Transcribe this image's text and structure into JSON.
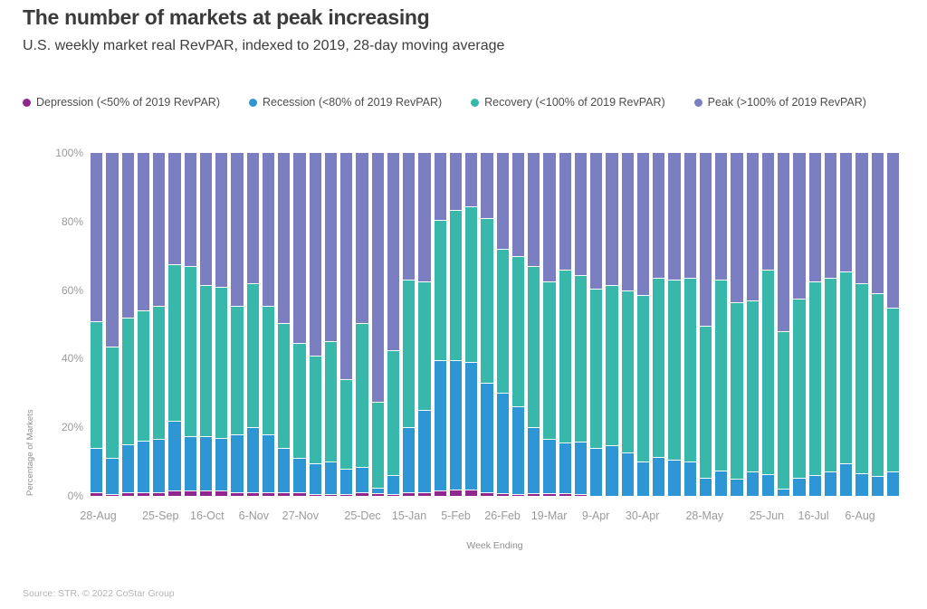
{
  "title": "The number of markets at peak increasing",
  "subtitle": "U.S. weekly market real RevPAR, indexed to 2019, 28-day moving average",
  "footer": "Source: STR. © 2022 CoStar Group",
  "colors": {
    "depression": "#90278e",
    "recession": "#2e96d4",
    "recovery": "#38b8ab",
    "peak": "#7b7ec1",
    "title_text": "#3b3b3b",
    "axis_text": "#9b9b9b"
  },
  "legend": {
    "items": [
      {
        "label": "Depression (<50% of 2019 RevPAR)",
        "color": "depression"
      },
      {
        "label": "Recession (<80% of 2019 RevPAR)",
        "color": "recession"
      },
      {
        "label": "Recovery (<100% of 2019 RevPAR)",
        "color": "recovery"
      },
      {
        "label": "Peak (>100% of 2019 RevPAR)",
        "color": "peak"
      }
    ]
  },
  "chart_data": {
    "type": "bar",
    "stacked": true,
    "title": "The number of markets at peak increasing",
    "subtitle": "U.S. weekly market real RevPAR, indexed to 2019, 28-day moving average",
    "xlabel": "Week Ending",
    "ylabel": "Percentage of Markets",
    "ylim": [
      0,
      100
    ],
    "grid": false,
    "legend_position": "top",
    "y_ticks": [
      {
        "value": 0,
        "label": "0%"
      },
      {
        "value": 20,
        "label": "20%"
      },
      {
        "value": 40,
        "label": "40%"
      },
      {
        "value": 60,
        "label": "60%"
      },
      {
        "value": 80,
        "label": "80%"
      },
      {
        "value": 100,
        "label": "100%"
      }
    ],
    "x_tick_marks": [
      {
        "index": 0,
        "label": "28-Aug"
      },
      {
        "index": 4,
        "label": "25-Sep"
      },
      {
        "index": 7,
        "label": "16-Oct"
      },
      {
        "index": 10,
        "label": "6-Nov"
      },
      {
        "index": 13,
        "label": "27-Nov"
      },
      {
        "index": 17,
        "label": "25-Dec"
      },
      {
        "index": 20,
        "label": "15-Jan"
      },
      {
        "index": 23,
        "label": "5-Feb"
      },
      {
        "index": 26,
        "label": "26-Feb"
      },
      {
        "index": 29,
        "label": "19-Mar"
      },
      {
        "index": 32,
        "label": "9-Apr"
      },
      {
        "index": 35,
        "label": "30-Apr"
      },
      {
        "index": 39,
        "label": "28-May"
      },
      {
        "index": 43,
        "label": "25-Jun"
      },
      {
        "index": 46,
        "label": "16-Jul"
      },
      {
        "index": 49,
        "label": "6-Aug"
      }
    ],
    "categories": [
      "28-Aug",
      "4-Sep",
      "11-Sep",
      "18-Sep",
      "25-Sep",
      "2-Oct",
      "9-Oct",
      "16-Oct",
      "23-Oct",
      "30-Oct",
      "6-Nov",
      "13-Nov",
      "20-Nov",
      "27-Nov",
      "4-Dec",
      "11-Dec",
      "18-Dec",
      "25-Dec",
      "1-Jan",
      "8-Jan",
      "15-Jan",
      "22-Jan",
      "29-Jan",
      "5-Feb",
      "12-Feb",
      "19-Feb",
      "26-Feb",
      "5-Mar",
      "12-Mar",
      "19-Mar",
      "26-Mar",
      "2-Apr",
      "9-Apr",
      "16-Apr",
      "23-Apr",
      "30-Apr",
      "7-May",
      "14-May",
      "21-May",
      "28-May",
      "4-Jun",
      "11-Jun",
      "18-Jun",
      "25-Jun",
      "2-Jul",
      "9-Jul",
      "16-Jul",
      "23-Jul",
      "30-Jul",
      "6-Aug",
      "13-Aug",
      "20-Aug"
    ],
    "series": [
      {
        "name": "Depression (<50% of 2019 RevPAR)",
        "color": "depression",
        "values": [
          1,
          0.5,
          1,
          1,
          1,
          1.5,
          1.5,
          1.5,
          1.5,
          1,
          1,
          1,
          1,
          1,
          0.5,
          0.5,
          0.5,
          1,
          0.7,
          0.5,
          1,
          1,
          1.7,
          1.8,
          1.8,
          1,
          0.8,
          0.5,
          0.8,
          0.9,
          0.9,
          0.4,
          0,
          0,
          0,
          0,
          0,
          0,
          0,
          0,
          0,
          0,
          0,
          0,
          0,
          0,
          0,
          0,
          0,
          0,
          0,
          0
        ]
      },
      {
        "name": "Recession (<80% of 2019 RevPAR)",
        "color": "recession",
        "values": [
          13,
          10.5,
          14,
          15,
          15.5,
          20.5,
          16,
          16,
          15.5,
          17,
          19,
          17,
          13,
          10,
          9,
          9.5,
          7.5,
          7.5,
          1.7,
          5.5,
          19,
          24,
          37.8,
          37.7,
          37.2,
          32,
          29.2,
          25.5,
          19.2,
          15.6,
          14.8,
          15.4,
          14,
          14.8,
          12.7,
          10,
          11.4,
          10.5,
          10,
          5.2,
          7.4,
          5,
          7,
          6.3,
          2.2,
          5.2,
          6,
          7.1,
          9.6,
          6.7,
          5.9,
          7
        ]
      },
      {
        "name": "Recovery (<100% of 2019 RevPAR)",
        "color": "recovery",
        "values": [
          37,
          32.5,
          37,
          38,
          39,
          45.5,
          49.5,
          44,
          44,
          37.5,
          42,
          37.5,
          36.5,
          33.5,
          31.5,
          35,
          26,
          42,
          25.1,
          36.5,
          43,
          37.5,
          41,
          44,
          45.5,
          48,
          42,
          44,
          47,
          46,
          50.3,
          48.7,
          46.5,
          46.7,
          47.3,
          48.5,
          52.1,
          52.5,
          53.5,
          44.3,
          55.6,
          51.5,
          50,
          59.7,
          45.8,
          52.3,
          56.5,
          56.4,
          55.9,
          55.3,
          53.1,
          48
        ]
      },
      {
        "name": "Peak (>100% of 2019 RevPAR)",
        "color": "peak",
        "values": [
          49,
          56.5,
          48,
          46,
          44.5,
          32.5,
          33,
          38.5,
          39,
          44.5,
          38,
          44.5,
          49.5,
          55.5,
          59,
          55,
          66,
          49.5,
          72.5,
          57.5,
          37,
          37.5,
          19.5,
          16.5,
          15.5,
          19,
          28,
          30,
          33,
          37.5,
          34,
          35.5,
          39.5,
          38.5,
          40,
          41.5,
          36.5,
          37,
          36.5,
          50.5,
          37,
          43.5,
          43,
          34,
          52,
          42.5,
          37.5,
          36.5,
          34.5,
          38,
          41,
          45
        ]
      }
    ]
  }
}
